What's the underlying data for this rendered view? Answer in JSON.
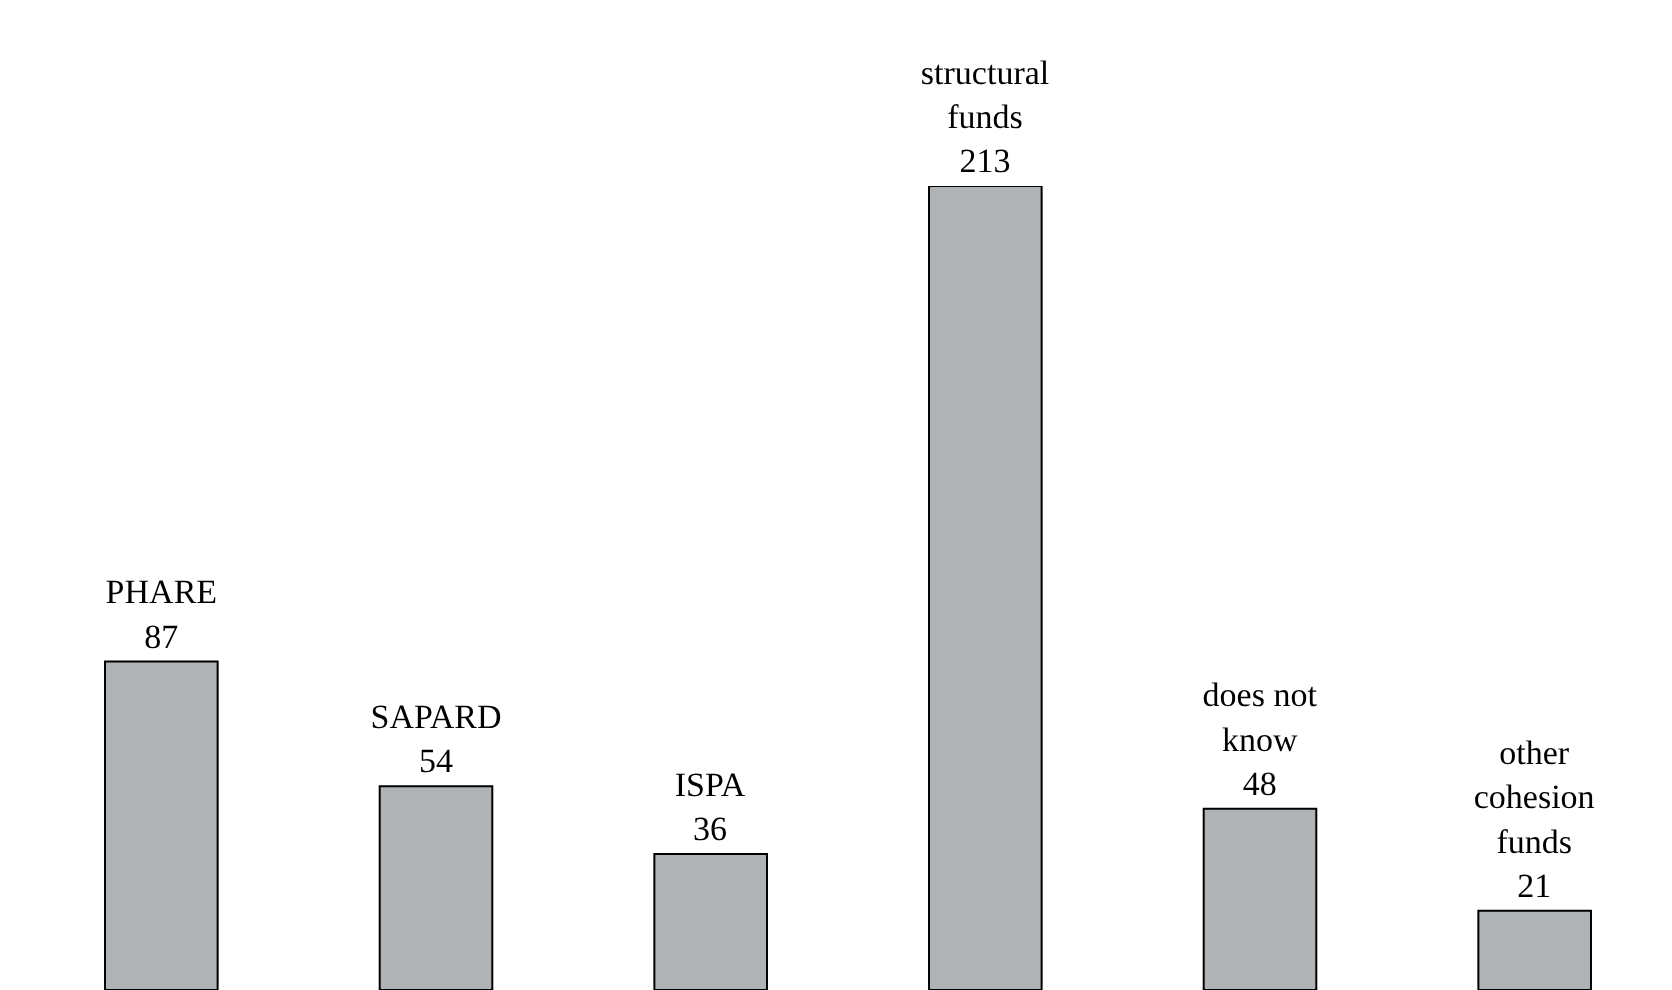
{
  "chart_data": {
    "type": "bar",
    "categories": [
      "PHARE",
      "SAPARD",
      "ISPA",
      "structural funds",
      "does not know",
      "other cohesion funds"
    ],
    "values": [
      87,
      54,
      36,
      213,
      48,
      21
    ],
    "color": "#b0b3b5",
    "data_labels": true
  }
}
